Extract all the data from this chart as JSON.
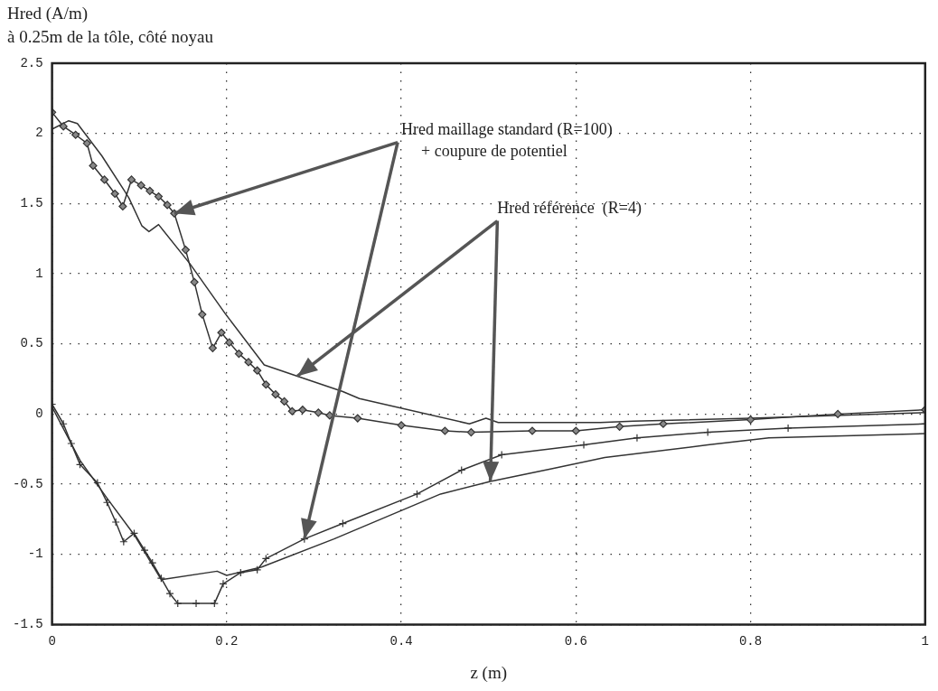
{
  "chart_data": {
    "type": "line",
    "subtitle": "à 0.25m de la tôle, côté noyau",
    "ylabel": "Hred (A/m)",
    "xlabel": "z (m)",
    "annotations": [
      {
        "text": "Hred maillage standard (R=100)\n+ coupure de potentiel",
        "x": 0.14,
        "y": 1.43
      },
      {
        "text": "Hred référence  (R=4)",
        "x": 0.502,
        "y": -0.48
      }
    ],
    "xlim": [
      0,
      1
    ],
    "xticks": [
      0,
      0.2,
      0.4,
      0.6,
      0.8,
      1
    ],
    "ylim": [
      -1.5,
      2.5
    ],
    "yticks": [
      -1.5,
      -1,
      -0.5,
      0,
      0.5,
      1,
      1.5,
      2,
      2.5
    ],
    "grid": true,
    "legend": false,
    "line_style": "solid",
    "series": [
      {
        "color": "#333333",
        "marker": "diamond",
        "x": [
          0,
          0.013,
          0.027,
          0.04,
          0.047,
          0.06,
          0.072,
          0.081,
          0.091,
          0.102,
          0.112,
          0.122,
          0.132,
          0.14,
          0.153,
          0.163,
          0.172,
          0.184,
          0.194,
          0.203,
          0.214,
          0.225,
          0.235,
          0.245,
          0.256,
          0.266,
          0.275,
          0.287,
          0.305,
          0.318,
          0.35,
          0.4,
          0.45,
          0.48,
          0.55,
          0.6,
          0.65,
          0.7,
          0.8,
          0.9,
          1.0
        ],
        "values": [
          2.15,
          2.05,
          1.99,
          1.93,
          1.77,
          1.67,
          1.57,
          1.48,
          1.67,
          1.63,
          1.59,
          1.55,
          1.49,
          1.43,
          1.17,
          0.94,
          0.71,
          0.47,
          0.58,
          0.51,
          0.43,
          0.37,
          0.31,
          0.21,
          0.14,
          0.09,
          0.02,
          0.03,
          0.01,
          -0.01,
          -0.03,
          -0.08,
          -0.12,
          -0.13,
          -0.12,
          -0.12,
          -0.09,
          -0.07,
          -0.04,
          0,
          0.03
        ]
      },
      {
        "color": "#333333",
        "marker": "none",
        "x": [
          0,
          0.019,
          0.029,
          0.057,
          0.083,
          0.088,
          0.103,
          0.111,
          0.122,
          0.158,
          0.199,
          0.243,
          0.281,
          0.333,
          0.352,
          0.478,
          0.497,
          0.511,
          0.628,
          0.666,
          0.8,
          1.0
        ],
        "values": [
          2.03,
          2.09,
          2.07,
          1.84,
          1.59,
          1.54,
          1.34,
          1.3,
          1.35,
          1.07,
          0.71,
          0.35,
          0.27,
          0.16,
          0.11,
          -0.07,
          -0.03,
          -0.06,
          -0.06,
          -0.05,
          -0.03,
          0.01
        ]
      },
      {
        "color": "#333333",
        "marker": "cross",
        "x": [
          0,
          0.013,
          0.022,
          0.032,
          0.052,
          0.063,
          0.073,
          0.082,
          0.094,
          0.106,
          0.115,
          0.125,
          0.135,
          0.144,
          0.165,
          0.186,
          0.196,
          0.216,
          0.235,
          0.245,
          0.289,
          0.333,
          0.418,
          0.469,
          0.515,
          0.609,
          0.67,
          0.751,
          0.843,
          1.0
        ],
        "values": [
          0.07,
          -0.07,
          -0.21,
          -0.36,
          -0.49,
          -0.63,
          -0.77,
          -0.91,
          -0.85,
          -0.97,
          -1.06,
          -1.17,
          -1.28,
          -1.35,
          -1.35,
          -1.35,
          -1.21,
          -1.13,
          -1.11,
          -1.03,
          -0.89,
          -0.78,
          -0.57,
          -0.4,
          -0.29,
          -0.22,
          -0.17,
          -0.13,
          -0.1,
          -0.07
        ]
      },
      {
        "color": "#333333",
        "marker": "none",
        "x": [
          0,
          0.032,
          0.063,
          0.094,
          0.125,
          0.189,
          0.2,
          0.24,
          0.323,
          0.445,
          0.502,
          0.572,
          0.633,
          0.751,
          0.821,
          0.937,
          1.0
        ],
        "values": [
          0.05,
          -0.33,
          -0.6,
          -0.86,
          -1.18,
          -1.12,
          -1.15,
          -1.09,
          -0.89,
          -0.57,
          -0.48,
          -0.39,
          -0.31,
          -0.22,
          -0.17,
          -0.15,
          -0.14
        ]
      }
    ]
  }
}
